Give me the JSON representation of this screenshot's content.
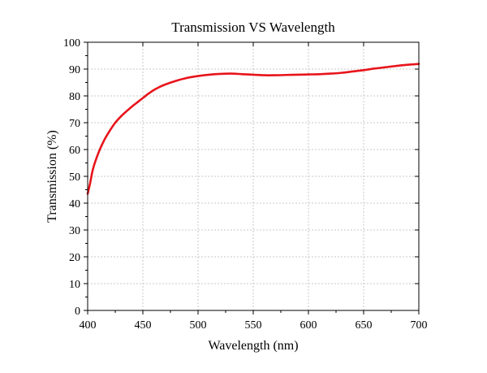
{
  "chart_data": {
    "type": "line",
    "title": "Transmission VS Wavelength",
    "xlabel": "Wavelength (nm)",
    "ylabel": "Transmission (%)",
    "xlim": [
      400,
      700
    ],
    "ylim": [
      0,
      100
    ],
    "xticks": [
      400,
      450,
      500,
      550,
      600,
      650,
      700
    ],
    "yticks": [
      0,
      10,
      20,
      30,
      40,
      50,
      60,
      70,
      80,
      90,
      100
    ],
    "grid": true,
    "legend": "none",
    "series": [
      {
        "color": "#e8141b",
        "x": [
          400,
          402,
          405,
          410,
          415,
          420,
          425,
          430,
          435,
          440,
          445,
          450,
          455,
          460,
          465,
          470,
          480,
          490,
          500,
          510,
          520,
          530,
          540,
          550,
          560,
          570,
          580,
          590,
          600,
          610,
          620,
          630,
          640,
          650,
          660,
          670,
          680,
          690,
          700
        ],
        "values": [
          43.5,
          47,
          53,
          59,
          63.5,
          67,
          70,
          72.3,
          74.2,
          76,
          77.6,
          79.2,
          80.8,
          82.2,
          83.3,
          84.2,
          85.6,
          86.7,
          87.4,
          87.9,
          88.2,
          88.3,
          88.1,
          87.9,
          87.7,
          87.7,
          87.8,
          87.9,
          88.0,
          88.1,
          88.3,
          88.6,
          89.1,
          89.6,
          90.2,
          90.7,
          91.2,
          91.6,
          91.9
        ]
      }
    ]
  }
}
